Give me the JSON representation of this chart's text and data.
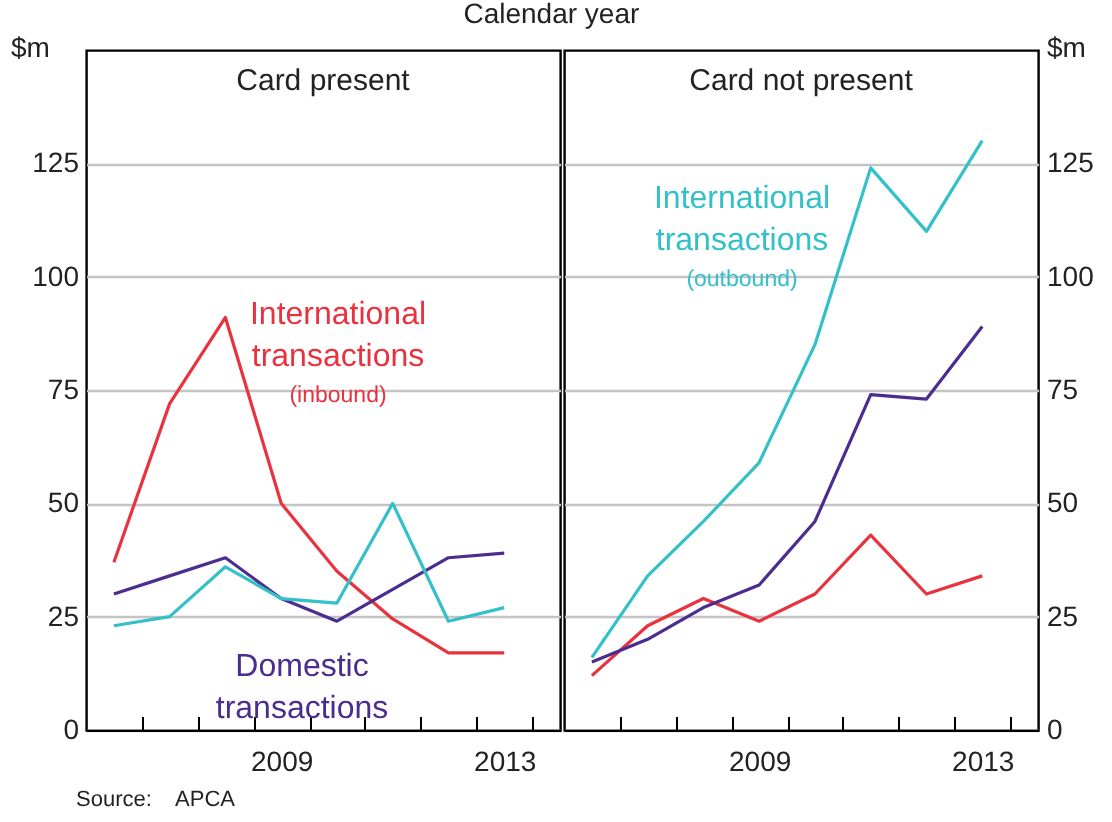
{
  "chart_data": [
    {
      "type": "line",
      "title": "Card present",
      "ylabel": "$m",
      "x": [
        2006.5,
        2007.5,
        2008.5,
        2009.5,
        2010.5,
        2011.5,
        2012.5,
        2013.5
      ],
      "xlim": [
        2006,
        2014.5
      ],
      "xticks": [
        {
          "value": 2007,
          "label": null
        },
        {
          "value": 2008,
          "label": null
        },
        {
          "value": 2009,
          "label": null
        },
        {
          "value": 2010,
          "label": null
        },
        {
          "value": 2011,
          "label": null
        },
        {
          "value": 2012,
          "label": null
        },
        {
          "value": 2013,
          "label": null
        },
        {
          "value": 2014,
          "label": null
        },
        {
          "value": 2009.5,
          "label": "2009"
        },
        {
          "value": 2013.5,
          "label": "2013"
        }
      ],
      "ylim": [
        0,
        150
      ],
      "yticks": [
        0,
        25,
        50,
        75,
        100,
        125
      ],
      "grid": "y",
      "series": [
        {
          "name": "International transactions (inbound)",
          "color": "#e8333f",
          "values": [
            37,
            72,
            91,
            50,
            35,
            24.5,
            17,
            17
          ]
        },
        {
          "name": "Domestic transactions",
          "color": "#4b2d8f",
          "values": [
            30,
            34,
            38,
            29,
            24,
            31,
            38,
            39
          ]
        },
        {
          "color": "#33c0c8",
          "values": [
            23,
            25,
            36,
            29,
            28,
            50,
            24,
            27
          ]
        }
      ],
      "annotations": [
        "Calendar year",
        "Source:    APCA"
      ]
    },
    {
      "type": "line",
      "title": "Card not present",
      "ylabel": "$m",
      "x": [
        2006.5,
        2007.5,
        2008.5,
        2009.5,
        2010.5,
        2011.5,
        2012.5,
        2013.5
      ],
      "xlim": [
        2006,
        2014.5
      ],
      "xticks": [
        {
          "value": 2007,
          "label": null
        },
        {
          "value": 2008,
          "label": null
        },
        {
          "value": 2009,
          "label": null
        },
        {
          "value": 2010,
          "label": null
        },
        {
          "value": 2011,
          "label": null
        },
        {
          "value": 2012,
          "label": null
        },
        {
          "value": 2013,
          "label": null
        },
        {
          "value": 2014,
          "label": null
        },
        {
          "value": 2009.5,
          "label": "2009"
        },
        {
          "value": 2013.5,
          "label": "2013"
        }
      ],
      "ylim": [
        0,
        150
      ],
      "yticks": [
        0,
        25,
        50,
        75,
        100,
        125
      ],
      "grid": "y",
      "series": [
        {
          "color": "#e8333f",
          "values": [
            12,
            23,
            29,
            24,
            30,
            43,
            30,
            34
          ]
        },
        {
          "color": "#4b2d8f",
          "values": [
            15,
            20,
            27,
            32,
            46,
            74,
            73,
            89
          ]
        },
        {
          "name": "International transactions (outbound)",
          "color": "#33c0c8",
          "values": [
            16,
            34,
            46,
            59,
            85,
            124,
            110,
            130
          ]
        }
      ]
    }
  ]
}
